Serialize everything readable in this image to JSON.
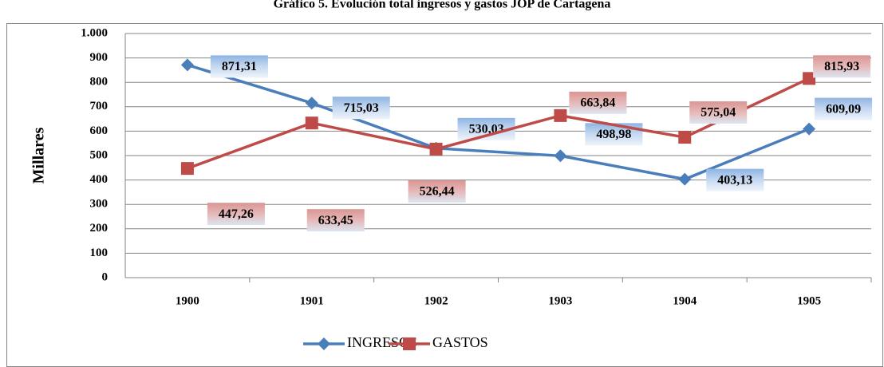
{
  "chart_data": {
    "type": "line",
    "title": "Gráfico 5. Evolución total ingresos y gastos JOP de Cartagena",
    "y_label": "Millares",
    "categories": [
      "1900",
      "1901",
      "1902",
      "1903",
      "1904",
      "1905"
    ],
    "series": [
      {
        "name": "INGRESOS",
        "color": "#4a7ebb",
        "values": [
          871.31,
          715.03,
          530.03,
          498.98,
          403.13,
          609.09
        ],
        "value_labels": [
          "871,31",
          "715,03",
          "530,03",
          "498,98",
          "403,13",
          "609,09"
        ]
      },
      {
        "name": "GASTOS",
        "color": "#be4b48",
        "values": [
          447.26,
          633.45,
          526.44,
          663.84,
          575.04,
          815.93
        ],
        "value_labels": [
          "447,26",
          "633,45",
          "526,44",
          "663,84",
          "575,04",
          "815,93"
        ]
      }
    ],
    "ylim": [
      0,
      1000
    ],
    "yticks": [
      0,
      100,
      200,
      300,
      400,
      500,
      600,
      700,
      800,
      900,
      {
        "value": 1000,
        "label": "1.000"
      }
    ],
    "grid": true,
    "legend": "bottom"
  }
}
